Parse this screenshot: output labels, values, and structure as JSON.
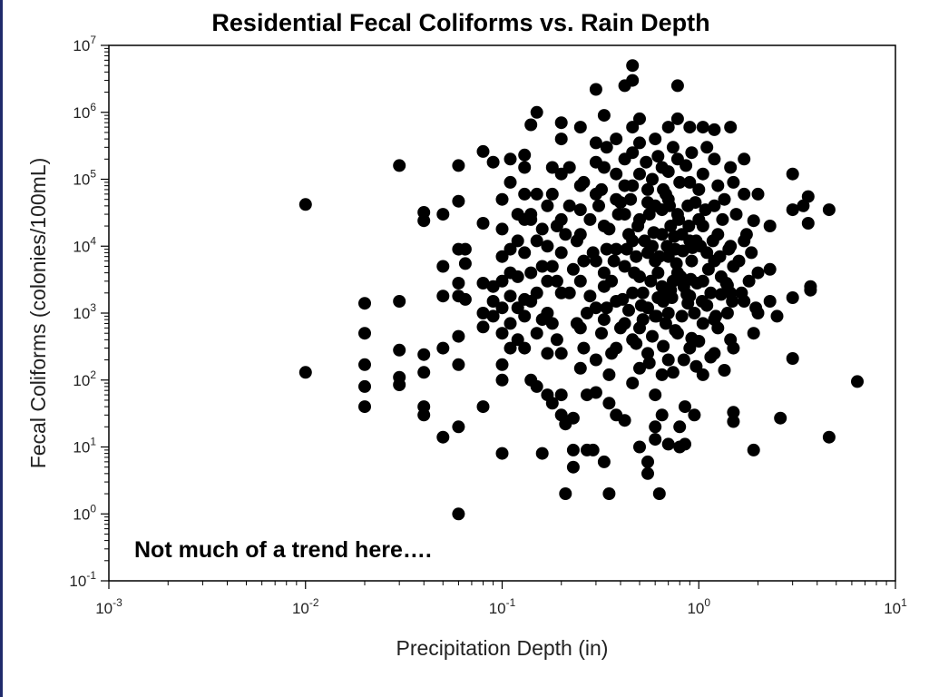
{
  "chart_data": {
    "type": "scatter",
    "title": "Residential Fecal Coliforms vs. Rain Depth",
    "annotation": "Not much of a trend here….",
    "xlabel": "Precipitation Depth (in)",
    "ylabel": "Fecal Coliforms (colonies/100mL)",
    "x_scale": "log",
    "y_scale": "log",
    "xlim": [
      0.001,
      10
    ],
    "ylim": [
      0.1,
      10000000
    ],
    "x_ticks": [
      {
        "value": 0.001,
        "base": "10",
        "exp": "-3"
      },
      {
        "value": 0.01,
        "base": "10",
        "exp": "-2"
      },
      {
        "value": 0.1,
        "base": "10",
        "exp": "-1"
      },
      {
        "value": 1,
        "base": "10",
        "exp": "0"
      },
      {
        "value": 10,
        "base": "10",
        "exp": "1"
      }
    ],
    "y_ticks": [
      {
        "value": 0.1,
        "base": "10",
        "exp": "-1"
      },
      {
        "value": 1,
        "base": "10",
        "exp": "0"
      },
      {
        "value": 10,
        "base": "10",
        "exp": "1"
      },
      {
        "value": 100,
        "base": "10",
        "exp": "2"
      },
      {
        "value": 1000,
        "base": "10",
        "exp": "3"
      },
      {
        "value": 10000,
        "base": "10",
        "exp": "4"
      },
      {
        "value": 100000,
        "base": "10",
        "exp": "5"
      },
      {
        "value": 1000000,
        "base": "10",
        "exp": "6"
      },
      {
        "value": 10000000,
        "base": "10",
        "exp": "7"
      }
    ],
    "grid": false,
    "marker_color": "#000000",
    "points": [
      [
        0.01,
        42000
      ],
      [
        0.01,
        130
      ],
      [
        0.02,
        1400
      ],
      [
        0.02,
        500
      ],
      [
        0.02,
        170
      ],
      [
        0.02,
        80
      ],
      [
        0.02,
        40
      ],
      [
        0.03,
        160000
      ],
      [
        0.03,
        1500
      ],
      [
        0.03,
        280
      ],
      [
        0.03,
        110
      ],
      [
        0.03,
        85
      ],
      [
        0.04,
        32000
      ],
      [
        0.04,
        24000
      ],
      [
        0.04,
        240
      ],
      [
        0.04,
        130
      ],
      [
        0.04,
        40
      ],
      [
        0.04,
        30
      ],
      [
        0.05,
        30000
      ],
      [
        0.05,
        5000
      ],
      [
        0.05,
        1800
      ],
      [
        0.05,
        300
      ],
      [
        0.05,
        14
      ],
      [
        0.06,
        160000
      ],
      [
        0.06,
        47000
      ],
      [
        0.06,
        9000
      ],
      [
        0.06,
        2800
      ],
      [
        0.06,
        1800
      ],
      [
        0.06,
        450
      ],
      [
        0.06,
        170
      ],
      [
        0.06,
        20
      ],
      [
        0.06,
        1
      ],
      [
        0.065,
        9000
      ],
      [
        0.065,
        5500
      ],
      [
        0.065,
        1600
      ],
      [
        0.08,
        260000
      ],
      [
        0.08,
        22000
      ],
      [
        0.08,
        2800
      ],
      [
        0.08,
        1000
      ],
      [
        0.08,
        620
      ],
      [
        0.08,
        40
      ],
      [
        0.09,
        180000
      ],
      [
        0.09,
        2500
      ],
      [
        0.09,
        1500
      ],
      [
        0.09,
        900
      ],
      [
        0.1,
        50000
      ],
      [
        0.1,
        18000
      ],
      [
        0.1,
        7000
      ],
      [
        0.1,
        3000
      ],
      [
        0.1,
        500
      ],
      [
        0.1,
        170
      ],
      [
        0.1,
        100
      ],
      [
        0.1,
        8
      ],
      [
        0.11,
        200000
      ],
      [
        0.11,
        90000
      ],
      [
        0.11,
        9000
      ],
      [
        0.11,
        1800
      ],
      [
        0.11,
        700
      ],
      [
        0.12,
        30000
      ],
      [
        0.12,
        3500
      ],
      [
        0.12,
        400
      ],
      [
        0.13,
        230000
      ],
      [
        0.13,
        150000
      ],
      [
        0.13,
        25000
      ],
      [
        0.13,
        8000
      ],
      [
        0.13,
        1600
      ],
      [
        0.13,
        900
      ],
      [
        0.13,
        300
      ],
      [
        0.14,
        650000
      ],
      [
        0.14,
        30000
      ],
      [
        0.14,
        4000
      ],
      [
        0.14,
        100
      ],
      [
        0.15,
        1000000
      ],
      [
        0.15,
        60000
      ],
      [
        0.15,
        2000
      ],
      [
        0.15,
        500
      ],
      [
        0.15,
        80
      ],
      [
        0.16,
        18000
      ],
      [
        0.16,
        8
      ],
      [
        0.17,
        40000
      ],
      [
        0.17,
        10000
      ],
      [
        0.17,
        3000
      ],
      [
        0.17,
        1000
      ],
      [
        0.17,
        60
      ],
      [
        0.18,
        150000
      ],
      [
        0.18,
        5000
      ],
      [
        0.18,
        700
      ],
      [
        0.18,
        45
      ],
      [
        0.2,
        700000
      ],
      [
        0.2,
        400000
      ],
      [
        0.2,
        120000
      ],
      [
        0.2,
        25000
      ],
      [
        0.2,
        8000
      ],
      [
        0.2,
        2000
      ],
      [
        0.2,
        250
      ],
      [
        0.2,
        60
      ],
      [
        0.2,
        30
      ],
      [
        0.21,
        2
      ],
      [
        0.21,
        22
      ],
      [
        0.23,
        9
      ],
      [
        0.23,
        5
      ],
      [
        0.23,
        27
      ],
      [
        0.25,
        600000
      ],
      [
        0.25,
        80000
      ],
      [
        0.25,
        15000
      ],
      [
        0.25,
        3000
      ],
      [
        0.25,
        600
      ],
      [
        0.25,
        150
      ],
      [
        0.27,
        9
      ],
      [
        0.27,
        60
      ],
      [
        0.29,
        9
      ],
      [
        0.3,
        2200000
      ],
      [
        0.3,
        350000
      ],
      [
        0.3,
        60000
      ],
      [
        0.3,
        6000
      ],
      [
        0.3,
        1200
      ],
      [
        0.3,
        200
      ],
      [
        0.3,
        65
      ],
      [
        0.33,
        6
      ],
      [
        0.33,
        900000
      ],
      [
        0.33,
        150000
      ],
      [
        0.33,
        20000
      ],
      [
        0.33,
        4000
      ],
      [
        0.33,
        800
      ],
      [
        0.35,
        2
      ],
      [
        0.35,
        45
      ],
      [
        0.35,
        120
      ],
      [
        0.38,
        400000
      ],
      [
        0.38,
        50000
      ],
      [
        0.38,
        9000
      ],
      [
        0.38,
        1500
      ],
      [
        0.38,
        300
      ],
      [
        0.38,
        30
      ],
      [
        0.42,
        25
      ],
      [
        0.42,
        2500000
      ],
      [
        0.42,
        200000
      ],
      [
        0.42,
        30000
      ],
      [
        0.42,
        5000
      ],
      [
        0.42,
        700
      ],
      [
        0.46,
        5000000
      ],
      [
        0.46,
        3000000
      ],
      [
        0.46,
        600000
      ],
      [
        0.46,
        80000
      ],
      [
        0.46,
        12000
      ],
      [
        0.46,
        2000
      ],
      [
        0.46,
        400
      ],
      [
        0.46,
        90
      ],
      [
        0.5,
        10
      ],
      [
        0.5,
        800000
      ],
      [
        0.5,
        120000
      ],
      [
        0.5,
        25000
      ],
      [
        0.5,
        3500
      ],
      [
        0.5,
        600
      ],
      [
        0.5,
        150
      ],
      [
        0.55,
        6
      ],
      [
        0.55,
        4
      ],
      [
        0.55,
        70000
      ],
      [
        0.55,
        8000
      ],
      [
        0.55,
        1200
      ],
      [
        0.55,
        250
      ],
      [
        0.6,
        60
      ],
      [
        0.6,
        20
      ],
      [
        0.6,
        13
      ],
      [
        0.6,
        400000
      ],
      [
        0.6,
        40000
      ],
      [
        0.6,
        6000
      ],
      [
        0.6,
        900
      ],
      [
        0.63,
        2
      ],
      [
        0.65,
        30
      ],
      [
        0.65,
        120
      ],
      [
        0.65,
        150000
      ],
      [
        0.65,
        15000
      ],
      [
        0.65,
        2500
      ],
      [
        0.7,
        11
      ],
      [
        0.7,
        600000
      ],
      [
        0.7,
        50000
      ],
      [
        0.7,
        7000
      ],
      [
        0.7,
        1000
      ],
      [
        0.7,
        200
      ],
      [
        0.78,
        2500000
      ],
      [
        0.78,
        800000
      ],
      [
        0.78,
        200000
      ],
      [
        0.78,
        30000
      ],
      [
        0.78,
        4000
      ],
      [
        0.78,
        500
      ],
      [
        0.8,
        10
      ],
      [
        0.8,
        20
      ],
      [
        0.85,
        11
      ],
      [
        0.85,
        40
      ],
      [
        0.9,
        600000
      ],
      [
        0.9,
        90000
      ],
      [
        0.9,
        12000
      ],
      [
        0.9,
        1800
      ],
      [
        0.9,
        300
      ],
      [
        0.95,
        30
      ],
      [
        0.95,
        1000
      ],
      [
        1.05,
        600000
      ],
      [
        1.05,
        120000
      ],
      [
        1.05,
        20000
      ],
      [
        1.05,
        3000
      ],
      [
        1.05,
        700
      ],
      [
        1.05,
        120
      ],
      [
        1.2,
        550000
      ],
      [
        1.2,
        200000
      ],
      [
        1.2,
        40000
      ],
      [
        1.2,
        6000
      ],
      [
        1.2,
        800
      ],
      [
        1.2,
        250
      ],
      [
        1.45,
        600000
      ],
      [
        1.45,
        150000
      ],
      [
        1.45,
        10000
      ],
      [
        1.45,
        2000
      ],
      [
        1.45,
        400
      ],
      [
        1.5,
        33
      ],
      [
        1.5,
        24
      ],
      [
        1.5,
        90000
      ],
      [
        1.5,
        5000
      ],
      [
        1.5,
        300
      ],
      [
        1.7,
        200000
      ],
      [
        1.7,
        60000
      ],
      [
        1.7,
        12000
      ],
      [
        1.7,
        1500
      ],
      [
        1.9,
        9
      ],
      [
        1.9,
        500
      ],
      [
        1.9,
        24000
      ],
      [
        2.0,
        60000
      ],
      [
        2.0,
        4000
      ],
      [
        2.0,
        1000
      ],
      [
        2.3,
        20000
      ],
      [
        2.3,
        4500
      ],
      [
        2.3,
        1500
      ],
      [
        2.5,
        900
      ],
      [
        2.6,
        27
      ],
      [
        3.0,
        120000
      ],
      [
        3.0,
        35000
      ],
      [
        3.0,
        1700
      ],
      [
        3.0,
        210
      ],
      [
        3.4,
        40000
      ],
      [
        3.6,
        55000
      ],
      [
        3.6,
        22000
      ],
      [
        3.7,
        2500
      ],
      [
        3.7,
        2200
      ],
      [
        4.6,
        35000
      ],
      [
        4.6,
        14
      ],
      [
        6.4,
        95
      ],
      [
        0.22,
        40000
      ],
      [
        0.24,
        12000
      ],
      [
        0.26,
        6000
      ],
      [
        0.28,
        25000
      ],
      [
        0.32,
        70000
      ],
      [
        0.34,
        9000
      ],
      [
        0.36,
        3000
      ],
      [
        0.4,
        45000
      ],
      [
        0.44,
        15000
      ],
      [
        0.48,
        7000
      ],
      [
        0.52,
        2000
      ],
      [
        0.56,
        30000
      ],
      [
        0.58,
        10000
      ],
      [
        0.62,
        4000
      ],
      [
        0.66,
        1500
      ],
      [
        0.68,
        60000
      ],
      [
        0.72,
        20000
      ],
      [
        0.74,
        3000
      ],
      [
        0.76,
        9000
      ],
      [
        0.82,
        15000
      ],
      [
        0.84,
        2500
      ],
      [
        0.88,
        40000
      ],
      [
        0.92,
        6000
      ],
      [
        0.97,
        12000
      ],
      [
        1.0,
        25000
      ],
      [
        1.1,
        8000
      ],
      [
        1.15,
        2000
      ],
      [
        1.25,
        15000
      ],
      [
        1.3,
        3500
      ],
      [
        1.35,
        50000
      ],
      [
        1.4,
        1000
      ],
      [
        0.22,
        2000
      ],
      [
        0.24,
        700
      ],
      [
        0.26,
        300
      ],
      [
        0.28,
        1800
      ],
      [
        0.32,
        500
      ],
      [
        0.34,
        1200
      ],
      [
        0.36,
        250
      ],
      [
        0.4,
        600
      ],
      [
        0.44,
        1100
      ],
      [
        0.48,
        350
      ],
      [
        0.52,
        800
      ],
      [
        0.56,
        180
      ],
      [
        0.58,
        450
      ],
      [
        0.62,
        1700
      ],
      [
        0.66,
        320
      ],
      [
        0.68,
        700
      ],
      [
        0.72,
        2200
      ],
      [
        0.74,
        130
      ],
      [
        0.76,
        550
      ],
      [
        0.82,
        900
      ],
      [
        0.84,
        200
      ],
      [
        0.88,
        1400
      ],
      [
        0.92,
        420
      ],
      [
        0.97,
        160
      ],
      [
        1.0,
        380
      ],
      [
        1.1,
        1300
      ],
      [
        1.15,
        220
      ],
      [
        1.25,
        600
      ],
      [
        1.3,
        1900
      ],
      [
        1.35,
        140
      ],
      [
        1.4,
        2600
      ],
      [
        0.22,
        150000
      ],
      [
        0.26,
        90000
      ],
      [
        0.3,
        180000
      ],
      [
        0.34,
        300000
      ],
      [
        0.38,
        120000
      ],
      [
        0.42,
        80000
      ],
      [
        0.46,
        250000
      ],
      [
        0.5,
        350000
      ],
      [
        0.54,
        180000
      ],
      [
        0.58,
        100000
      ],
      [
        0.62,
        220000
      ],
      [
        0.66,
        70000
      ],
      [
        0.7,
        130000
      ],
      [
        0.74,
        300000
      ],
      [
        0.8,
        90000
      ],
      [
        0.86,
        160000
      ],
      [
        0.92,
        250000
      ],
      [
        1.0,
        70000
      ],
      [
        1.1,
        300000
      ],
      [
        1.25,
        80000
      ],
      [
        0.21,
        15000
      ],
      [
        0.23,
        4500
      ],
      [
        0.25,
        35000
      ],
      [
        0.27,
        1000
      ],
      [
        0.29,
        8000
      ],
      [
        0.31,
        40000
      ],
      [
        0.33,
        2500
      ],
      [
        0.35,
        18000
      ],
      [
        0.37,
        6000
      ],
      [
        0.39,
        30000
      ],
      [
        0.41,
        1600
      ],
      [
        0.43,
        9000
      ],
      [
        0.45,
        50000
      ],
      [
        0.47,
        4000
      ],
      [
        0.49,
        20000
      ],
      [
        0.51,
        1300
      ],
      [
        0.53,
        12000
      ],
      [
        0.55,
        45000
      ],
      [
        0.57,
        3000
      ],
      [
        0.59,
        16000
      ],
      [
        0.61,
        900
      ],
      [
        0.63,
        7000
      ],
      [
        0.65,
        35000
      ],
      [
        0.67,
        2200
      ],
      [
        0.69,
        10000
      ],
      [
        0.71,
        40000
      ],
      [
        0.73,
        1700
      ],
      [
        0.75,
        14000
      ],
      [
        0.77,
        5500
      ],
      [
        0.79,
        25000
      ],
      [
        0.81,
        3500
      ],
      [
        0.83,
        8500
      ],
      [
        0.87,
        1900
      ],
      [
        0.89,
        20000
      ],
      [
        0.91,
        3200
      ],
      [
        0.93,
        9500
      ],
      [
        0.96,
        45000
      ],
      [
        0.98,
        2800
      ],
      [
        1.02,
        10000
      ],
      [
        1.04,
        1500
      ],
      [
        1.08,
        35000
      ],
      [
        1.12,
        4500
      ],
      [
        1.18,
        12000
      ],
      [
        1.22,
        900
      ],
      [
        1.28,
        7000
      ],
      [
        1.32,
        25000
      ],
      [
        1.38,
        2800
      ],
      [
        1.42,
        9000
      ],
      [
        1.48,
        1500
      ],
      [
        1.55,
        30000
      ],
      [
        1.6,
        6000
      ],
      [
        1.65,
        2000
      ],
      [
        1.75,
        15000
      ],
      [
        1.8,
        3000
      ],
      [
        1.85,
        8000
      ],
      [
        1.95,
        1200
      ],
      [
        0.19,
        20000
      ],
      [
        0.19,
        3000
      ],
      [
        0.19,
        400
      ],
      [
        0.18,
        60000
      ],
      [
        0.17,
        250
      ],
      [
        0.16,
        800
      ],
      [
        0.16,
        5000
      ],
      [
        0.15,
        12000
      ],
      [
        0.14,
        1500
      ],
      [
        0.14,
        25000
      ],
      [
        0.13,
        60000
      ],
      [
        0.12,
        12000
      ],
      [
        0.12,
        1200
      ],
      [
        0.11,
        4000
      ],
      [
        0.11,
        300
      ],
      [
        0.1,
        1200
      ]
    ]
  }
}
